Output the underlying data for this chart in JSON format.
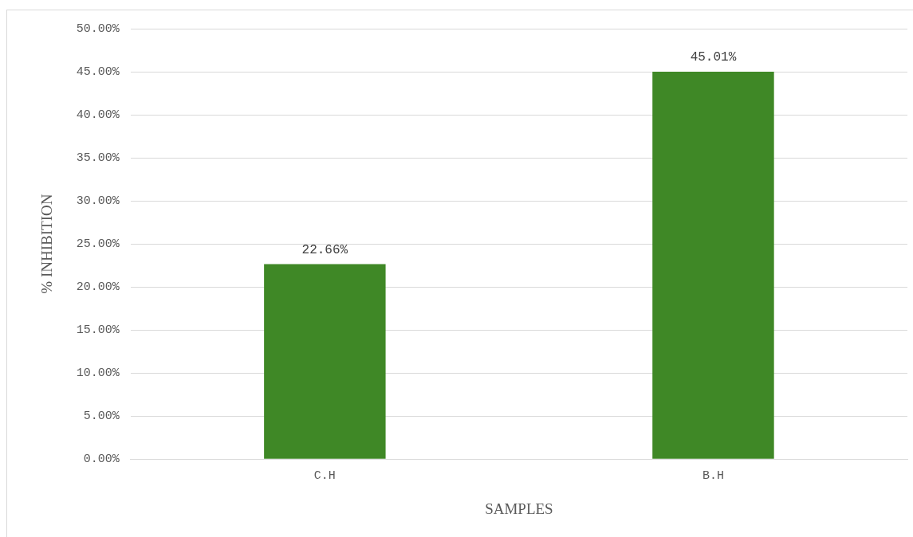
{
  "chart_data": {
    "type": "bar",
    "xlabel": "SAMPLES",
    "ylabel": "% INHIBITION",
    "categories": [
      "C.H",
      "B.H"
    ],
    "values": [
      22.66,
      45.01
    ],
    "color": "#3f8826",
    "value_labels": [
      "22.66%",
      "45.01%"
    ],
    "ylim": [
      0,
      50
    ],
    "yticks": [
      {
        "value": 0,
        "label": "0.00%"
      },
      {
        "value": 5,
        "label": "5.00%"
      },
      {
        "value": 10,
        "label": "10.00%"
      },
      {
        "value": 15,
        "label": "15.00%"
      },
      {
        "value": 20,
        "label": "20.00%"
      },
      {
        "value": 25,
        "label": "25.00%"
      },
      {
        "value": 30,
        "label": "30.00%"
      },
      {
        "value": 35,
        "label": "35.00%"
      },
      {
        "value": 40,
        "label": "40.00%"
      },
      {
        "value": 45,
        "label": "45.00%"
      },
      {
        "value": 50,
        "label": "50.00%"
      }
    ],
    "grid": "y",
    "legend": false
  }
}
